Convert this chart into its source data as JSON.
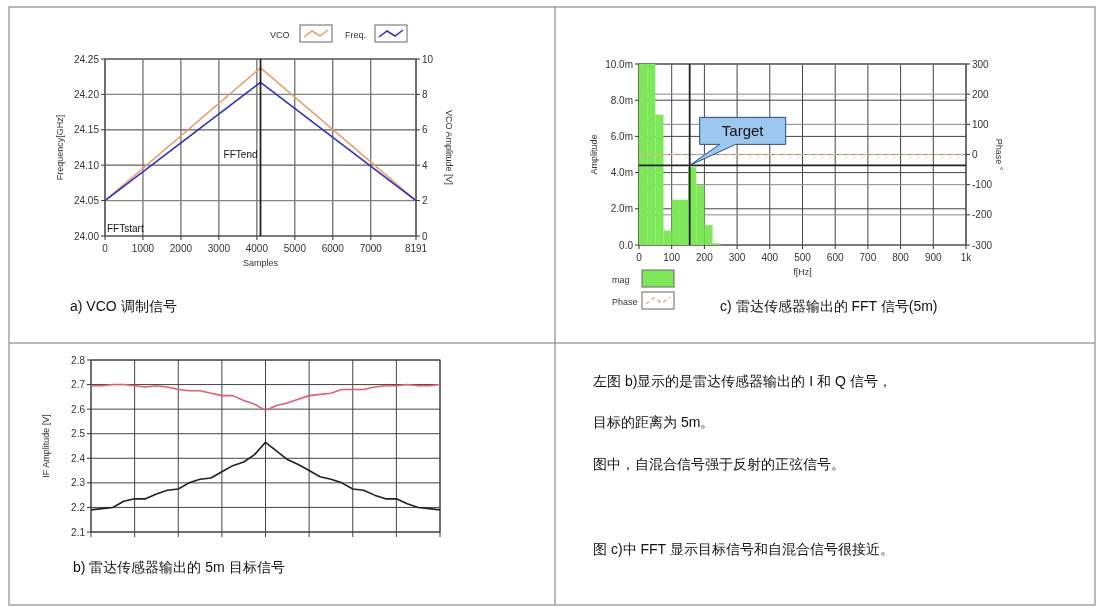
{
  "chart_data": [
    {
      "type": "line",
      "title": "a) VCO 调制信号",
      "xlabel": "Samples",
      "ylabel": "Frequency[GHz]",
      "y2label": "VCO Amplitude [V]",
      "xlim": [
        0,
        8191
      ],
      "xticks": [
        0,
        1000,
        2000,
        3000,
        4000,
        5000,
        6000,
        7000,
        8191
      ],
      "ylim": [
        24,
        24.25
      ],
      "yticks": [
        {
          "value": 24,
          "label": "24.00"
        },
        24.05,
        {
          "value": 24.1,
          "label": "24.10"
        },
        24.15,
        {
          "value": 24.2,
          "label": "24.20"
        },
        24.25
      ],
      "y2lim": [
        0,
        10
      ],
      "y2ticks": [
        0,
        2,
        4,
        6,
        8,
        10
      ],
      "series": [
        {
          "name": "VCO",
          "color": "#e8a070",
          "axis": "y2",
          "x": [
            0,
            4096,
            8191
          ],
          "values": [
            2,
            9.5,
            2
          ]
        },
        {
          "name": "Freq.",
          "color": "#3030c0",
          "x": [
            0,
            4096,
            8191
          ],
          "values": [
            24.05,
            24.217,
            24.05
          ]
        }
      ],
      "ref_lines": [
        {
          "axis": "x",
          "value": 4096,
          "label": "FFTend"
        }
      ],
      "annotations": [
        "FFTstart"
      ],
      "grid": true,
      "legend": "top right"
    },
    {
      "type": "histogram",
      "title": "c) 雷达传感器输出的 FFT 信号(5m)",
      "xlabel": "f[Hz]",
      "ylabel": "Amplitude",
      "y2label": "Phase °",
      "bins": [
        0,
        25,
        50,
        75,
        100,
        125,
        150,
        175,
        200,
        225,
        250
      ],
      "series": [
        {
          "name": "mag",
          "color": "#7ee85a",
          "values": [
            10,
            10,
            7.2,
            0.8,
            2.5,
            2.5,
            4.3,
            3.3,
            1.1,
            0.1
          ]
        },
        {
          "name": "Phase",
          "type": "line",
          "axis": "y2",
          "color": "#d8b890",
          "x": [
            0,
            1000
          ],
          "values": [
            0,
            0
          ],
          "line_style": "dashed"
        }
      ],
      "xlim": [
        0,
        1000
      ],
      "xticks": [
        0,
        100,
        200,
        300,
        400,
        500,
        600,
        700,
        800,
        900,
        {
          "value": 1000,
          "label": "1k"
        }
      ],
      "ylim": [
        0,
        10
      ],
      "yticks": [
        {
          "value": 0,
          "label": "0.0"
        },
        {
          "value": 2,
          "label": "2.0m"
        },
        {
          "value": 4,
          "label": "4.0m"
        },
        {
          "value": 6,
          "label": "6.0m"
        },
        {
          "value": 8,
          "label": "8.0m"
        },
        {
          "value": 10,
          "label": "10.0m"
        }
      ],
      "y2lim": [
        -300,
        300
      ],
      "y2ticks": [
        -300,
        -200,
        -100,
        0,
        100,
        200,
        300
      ],
      "ref_lines": [
        {
          "axis": "x",
          "value": 155
        },
        {
          "axis": "y",
          "value": 4.4
        }
      ],
      "annotations": [
        {
          "text": "Target",
          "x": 155,
          "y": 4.4
        }
      ],
      "grid": true,
      "legend": "bottom left"
    },
    {
      "type": "line",
      "title": "b) 雷达传感器输出的 5m 目标信号",
      "ylabel": "IF Amplitude [V]",
      "categories": [
        null,
        null,
        null,
        null,
        null,
        null,
        null,
        null,
        null,
        null,
        null,
        null,
        null,
        null,
        null,
        null,
        null,
        null,
        null,
        null,
        null,
        null,
        null,
        null,
        null,
        null,
        null,
        null,
        null,
        null,
        null,
        null,
        null
      ],
      "ylim": [
        2.1,
        2.8
      ],
      "yticks": [
        2.1,
        2.2,
        2.3,
        2.4,
        2.5,
        2.6,
        2.7,
        2.8
      ],
      "tick_labels": "y",
      "grid": true,
      "series": [
        {
          "color": "#e06070",
          "values": [
            2.695,
            2.695,
            2.7,
            2.7,
            2.695,
            2.69,
            2.695,
            2.69,
            2.68,
            2.675,
            2.675,
            2.665,
            2.655,
            2.655,
            2.635,
            2.62,
            2.595,
            2.615,
            2.625,
            2.64,
            2.655,
            2.66,
            2.665,
            2.68,
            2.68,
            2.68,
            2.69,
            2.695,
            2.695,
            2.7,
            2.695,
            2.695,
            2.7
          ]
        },
        {
          "color": "#202020",
          "values": [
            2.19,
            2.195,
            2.2,
            2.225,
            2.235,
            2.235,
            2.255,
            2.27,
            2.275,
            2.3,
            2.315,
            2.32,
            2.345,
            2.37,
            2.385,
            2.415,
            2.465,
            2.43,
            2.395,
            2.375,
            2.35,
            2.325,
            2.315,
            2.3,
            2.275,
            2.27,
            2.25,
            2.235,
            2.235,
            2.215,
            2.2,
            2.195,
            2.19
          ]
        }
      ]
    },
    {
      "type": "other",
      "annotations": [
        "左图 b)显示的是雷达传感器输出的 I 和 Q 信号，",
        "目标的距离为 5m。",
        "图中，自混合信号强于反射的正弦信号。",
        "图 c)中 FFT 显示目标信号和自混合信号很接近。"
      ]
    }
  ]
}
